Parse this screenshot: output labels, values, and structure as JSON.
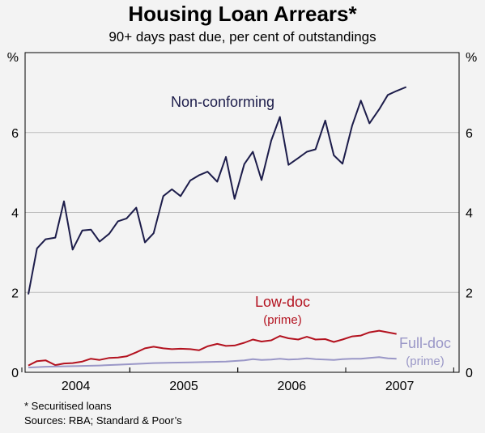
{
  "title": "Housing Loan Arrears*",
  "subtitle": "90+ days past due, per cent of outstandings",
  "footnotes": {
    "note": "*   Securitised loans",
    "sources": "Sources: RBA; Standard & Poor’s"
  },
  "colors": {
    "non_conforming": "#1c1c4a",
    "low_doc": "#b3121f",
    "full_doc": "#9a97c7",
    "grid": "#bdbdbd",
    "frame": "#000000"
  },
  "chart_data": {
    "type": "line",
    "title": "Housing Loan Arrears*",
    "subtitle": "90+ days past due, per cent of outstandings",
    "y_unit_label": "%",
    "ylim": [
      0,
      8
    ],
    "yticks": [
      0,
      2,
      4,
      6
    ],
    "xlim": [
      2003.53,
      2007.55
    ],
    "x_tick_labels": [
      {
        "label": "2004",
        "x": 2004.0
      },
      {
        "label": "2005",
        "x": 2005.0
      },
      {
        "label": "2006",
        "x": 2006.0
      },
      {
        "label": "2007",
        "x": 2007.0
      }
    ],
    "grid": "horizontal",
    "series": [
      {
        "name": "Non-conforming",
        "label_lines": [
          "Non-conforming"
        ],
        "color": "#1c1c4a",
        "x": [
          2003.56,
          2003.64,
          2003.72,
          2003.81,
          2003.89,
          2003.97,
          2004.06,
          2004.14,
          2004.22,
          2004.31,
          2004.39,
          2004.47,
          2004.56,
          2004.64,
          2004.72,
          2004.81,
          2004.89,
          2004.97,
          2005.06,
          2005.14,
          2005.22,
          2005.31,
          2005.39,
          2005.47,
          2005.56,
          2005.64,
          2005.72,
          2005.81,
          2005.89,
          2005.97,
          2006.06,
          2006.14,
          2006.22,
          2006.31,
          2006.39,
          2006.47,
          2006.56,
          2006.64,
          2006.72,
          2006.81,
          2006.89,
          2006.97,
          2007.06
        ],
        "values": [
          1.95,
          3.1,
          3.33,
          3.37,
          4.28,
          3.07,
          3.55,
          3.57,
          3.27,
          3.47,
          3.78,
          3.85,
          4.12,
          3.25,
          3.48,
          4.41,
          4.58,
          4.41,
          4.8,
          4.93,
          5.02,
          4.77,
          5.39,
          4.34,
          5.21,
          5.52,
          4.81,
          5.8,
          6.39,
          5.19,
          5.36,
          5.52,
          5.58,
          6.3,
          5.43,
          5.22,
          6.18,
          6.8,
          6.23,
          6.58,
          6.94,
          7.04,
          7.14
        ]
      },
      {
        "name": "Low-doc (prime)",
        "label_lines": [
          "Low-doc",
          "(prime)"
        ],
        "color": "#b3121f",
        "x": [
          2003.56,
          2003.64,
          2003.72,
          2003.81,
          2003.89,
          2003.97,
          2004.06,
          2004.14,
          2004.22,
          2004.31,
          2004.39,
          2004.47,
          2004.56,
          2004.64,
          2004.72,
          2004.81,
          2004.89,
          2004.97,
          2005.06,
          2005.14,
          2005.22,
          2005.31,
          2005.39,
          2005.47,
          2005.56,
          2005.64,
          2005.72,
          2005.81,
          2005.89,
          2005.97,
          2006.06,
          2006.14,
          2006.22,
          2006.31,
          2006.39,
          2006.47,
          2006.56,
          2006.64,
          2006.72,
          2006.81,
          2006.89,
          2006.97
        ],
        "values": [
          0.17,
          0.28,
          0.3,
          0.18,
          0.22,
          0.23,
          0.27,
          0.34,
          0.31,
          0.36,
          0.37,
          0.4,
          0.5,
          0.6,
          0.64,
          0.6,
          0.58,
          0.59,
          0.58,
          0.55,
          0.65,
          0.71,
          0.66,
          0.67,
          0.74,
          0.82,
          0.77,
          0.8,
          0.91,
          0.85,
          0.82,
          0.89,
          0.82,
          0.83,
          0.76,
          0.82,
          0.9,
          0.92,
          1.0,
          1.04,
          1.0,
          0.96
        ]
      },
      {
        "name": "Full-doc (prime)",
        "label_lines": [
          "Full-doc",
          "(prime)"
        ],
        "color": "#9a97c7",
        "x": [
          2003.56,
          2003.72,
          2003.89,
          2004.06,
          2004.22,
          2004.39,
          2004.56,
          2004.72,
          2004.89,
          2005.06,
          2005.22,
          2005.39,
          2005.56,
          2005.64,
          2005.72,
          2005.81,
          2005.89,
          2005.97,
          2006.06,
          2006.14,
          2006.22,
          2006.31,
          2006.39,
          2006.47,
          2006.56,
          2006.64,
          2006.72,
          2006.81,
          2006.89,
          2006.97
        ],
        "values": [
          0.12,
          0.14,
          0.15,
          0.16,
          0.17,
          0.19,
          0.21,
          0.23,
          0.24,
          0.25,
          0.26,
          0.27,
          0.3,
          0.33,
          0.31,
          0.32,
          0.34,
          0.32,
          0.33,
          0.35,
          0.33,
          0.32,
          0.31,
          0.33,
          0.34,
          0.34,
          0.36,
          0.38,
          0.35,
          0.34
        ]
      }
    ]
  }
}
